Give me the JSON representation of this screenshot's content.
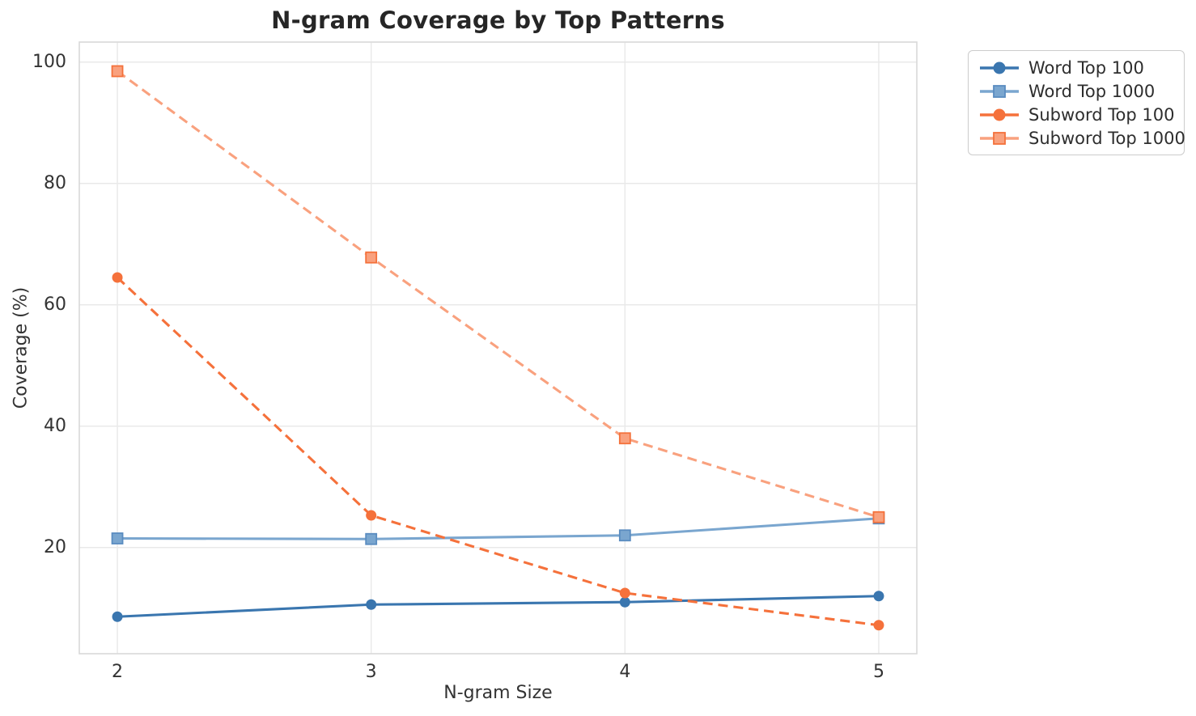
{
  "chart_data": {
    "type": "line",
    "title": "N-gram Coverage by Top Patterns",
    "xlabel": "N-gram Size",
    "ylabel": "Coverage (%)",
    "x": [
      2,
      3,
      4,
      5
    ],
    "xticks": [
      "2",
      "3",
      "4",
      "5"
    ],
    "yticks": [
      "20",
      "40",
      "60",
      "80",
      "100"
    ],
    "ytick_values": [
      20,
      40,
      60,
      80,
      100
    ],
    "xlim": [
      1.85,
      5.15
    ],
    "ylim": [
      2.5,
      103.3
    ],
    "grid": true,
    "legend_position": "upper right outside axes",
    "series": [
      {
        "name": "Word Top 100",
        "values": [
          8.6,
          10.6,
          11.0,
          12.0
        ],
        "color": "#3a76af",
        "marker": "circle",
        "marker_edge": "#3a76af",
        "line_style": "solid"
      },
      {
        "name": "Word Top 1000",
        "values": [
          21.5,
          21.4,
          22.0,
          24.8
        ],
        "color": "#7aa6cf",
        "marker": "square",
        "marker_edge": "#5a8cc0",
        "line_style": "solid"
      },
      {
        "name": "Subword Top 100",
        "values": [
          64.5,
          25.3,
          12.5,
          7.2
        ],
        "color": "#f5713b",
        "marker": "circle",
        "marker_edge": "#f5713b",
        "line_style": "dashed"
      },
      {
        "name": "Subword Top 1000",
        "values": [
          98.5,
          67.8,
          38.0,
          25.0
        ],
        "color": "#f9a17e",
        "marker": "square",
        "marker_edge": "#f4713b",
        "line_style": "dashed"
      }
    ]
  },
  "colors": {
    "background": "#ffffff",
    "grid": "#e9e9e9",
    "spine": "#d9d9d9",
    "title_text": "#262626",
    "tick_text": "#333333"
  }
}
